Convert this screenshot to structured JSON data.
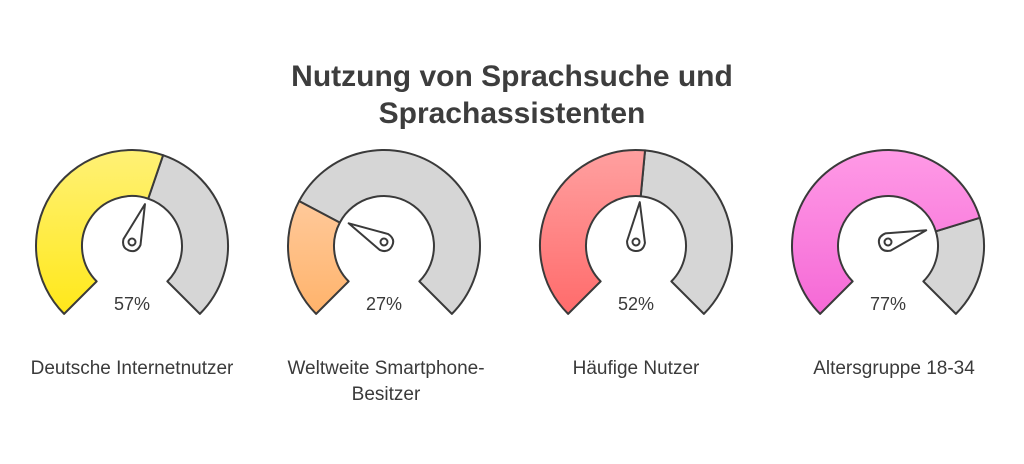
{
  "title": {
    "line1": "Nutzung von Sprachsuche und",
    "line2": "Sprachassistenten"
  },
  "gauges": [
    {
      "value": 57,
      "value_label": "57%",
      "label": "Deutsche Internetnutzer",
      "color_light": "#fff176",
      "color_dark": "#ffe81a"
    },
    {
      "value": 27,
      "value_label": "27%",
      "label": "Weltweite Smartphone-Besitzer",
      "color_light": "#ffc99a",
      "color_dark": "#ffb36b"
    },
    {
      "value": 52,
      "value_label": "52%",
      "label": "Häufige Nutzer",
      "color_light": "#ffa0a0",
      "color_dark": "#ff6b6b"
    },
    {
      "value": 77,
      "value_label": "77%",
      "label": "Altersgruppe 18-34",
      "color_light": "#ff9ae6",
      "color_dark": "#f569d6"
    }
  ],
  "track_color": "#d6d6d6",
  "stroke_color": "#3a3a3a"
}
